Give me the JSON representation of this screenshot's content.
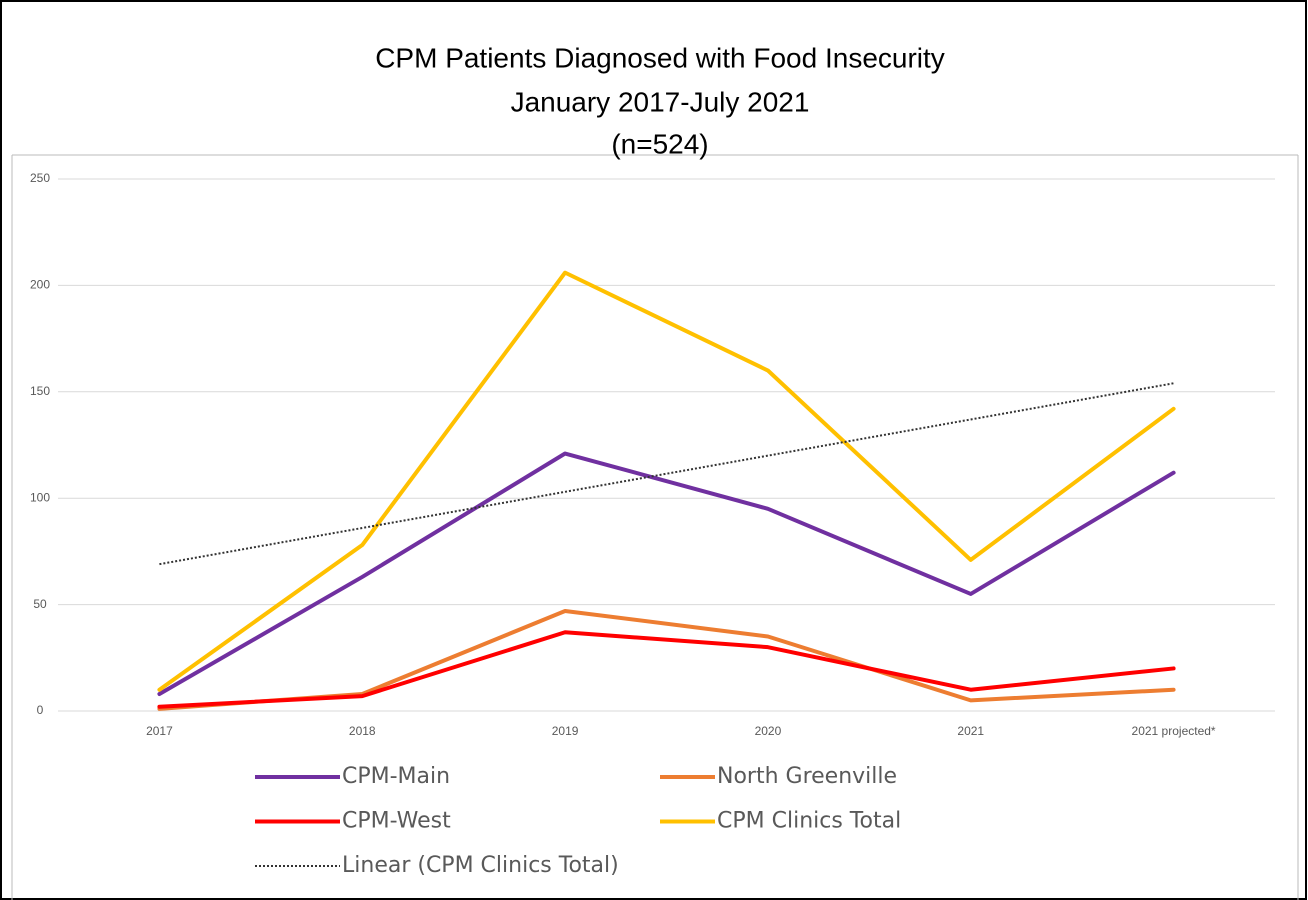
{
  "chart_data": {
    "type": "line",
    "title": "CPM Patients Diagnosed with Food Insecurity",
    "subtitle": [
      "January 2017-July 2021",
      "(n=524)"
    ],
    "categories": [
      "2017",
      "2018",
      "2019",
      "2020",
      "2021",
      "2021 projected*"
    ],
    "series": [
      {
        "name": "CPM-Main",
        "color": "#7030a0",
        "values": [
          8,
          63,
          121,
          95,
          55,
          112
        ]
      },
      {
        "name": "North Greenville",
        "color": "#ed7d31",
        "values": [
          1,
          8,
          47,
          35,
          5,
          10
        ]
      },
      {
        "name": "CPM-West",
        "color": "#ff0000",
        "values": [
          2,
          7,
          37,
          30,
          10,
          20
        ]
      },
      {
        "name": "CPM Clinics Total",
        "color": "#ffc000",
        "values": [
          10,
          78,
          206,
          160,
          71,
          142
        ]
      },
      {
        "name": "Linear (CPM Clinics Total)",
        "color": "#333333",
        "dotted": true,
        "values": [
          69,
          86,
          103,
          120,
          137,
          154
        ]
      }
    ],
    "ylim": [
      0,
      250
    ],
    "yticks": [
      0,
      50,
      100,
      150,
      200,
      250
    ],
    "grid": true
  }
}
